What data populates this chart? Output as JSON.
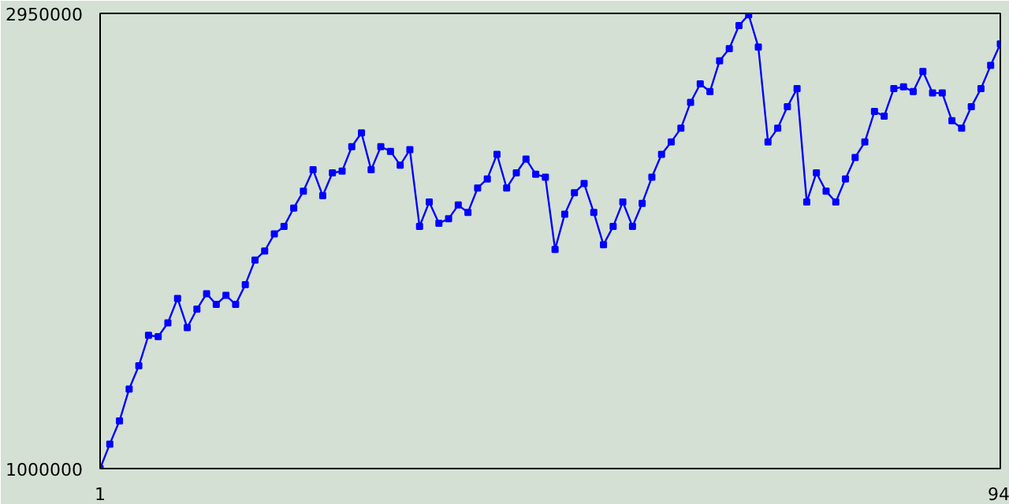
{
  "chart_data": {
    "type": "line",
    "x": [
      1,
      2,
      3,
      4,
      5,
      6,
      7,
      8,
      9,
      10,
      11,
      12,
      13,
      14,
      15,
      16,
      17,
      18,
      19,
      20,
      21,
      22,
      23,
      24,
      25,
      26,
      27,
      28,
      29,
      30,
      31,
      32,
      33,
      34,
      35,
      36,
      37,
      38,
      39,
      40,
      41,
      42,
      43,
      44,
      45,
      46,
      47,
      48,
      49,
      50,
      51,
      52,
      53,
      54,
      55,
      56,
      57,
      58,
      59,
      60,
      61,
      62,
      63,
      64,
      65,
      66,
      67,
      68,
      69,
      70,
      71,
      72,
      73,
      74,
      75,
      76,
      77,
      78,
      79,
      80,
      81,
      82,
      83,
      84,
      85,
      86,
      87,
      88,
      89,
      90,
      91,
      92,
      93,
      94
    ],
    "series": [
      {
        "color": "#0000ff",
        "values": [
          1000000,
          1105000,
          1204000,
          1341000,
          1440000,
          1571000,
          1565000,
          1624000,
          1729000,
          1604000,
          1683000,
          1749000,
          1703000,
          1742000,
          1703000,
          1788000,
          1893000,
          1932000,
          2005000,
          2037000,
          2116000,
          2188000,
          2280000,
          2169000,
          2267000,
          2274000,
          2379000,
          2438000,
          2280000,
          2379000,
          2359000,
          2300000,
          2366000,
          2037000,
          2142000,
          2051000,
          2070000,
          2129000,
          2097000,
          2202000,
          2241000,
          2346000,
          2202000,
          2267000,
          2326000,
          2261000,
          2248000,
          1939000,
          2090000,
          2182000,
          2221000,
          2097000,
          1959000,
          2037000,
          2142000,
          2037000,
          2136000,
          2248000,
          2346000,
          2399000,
          2458000,
          2569000,
          2648000,
          2615000,
          2747000,
          2799000,
          2898000,
          2944000,
          2806000,
          2399000,
          2458000,
          2550000,
          2628000,
          2142000,
          2267000,
          2188000,
          2142000,
          2241000,
          2333000,
          2399000,
          2530000,
          2510000,
          2628000,
          2635000,
          2615000,
          2701000,
          2609000,
          2609000,
          2490000,
          2458000,
          2550000,
          2628000,
          2727000,
          2819000
        ]
      }
    ],
    "xlim": [
      1,
      94
    ],
    "xticks": [
      1,
      94
    ],
    "ylim": [
      1000000,
      2950000
    ],
    "yticks": [
      1000000,
      2950000
    ],
    "marker": "square",
    "line_style": "solid"
  }
}
